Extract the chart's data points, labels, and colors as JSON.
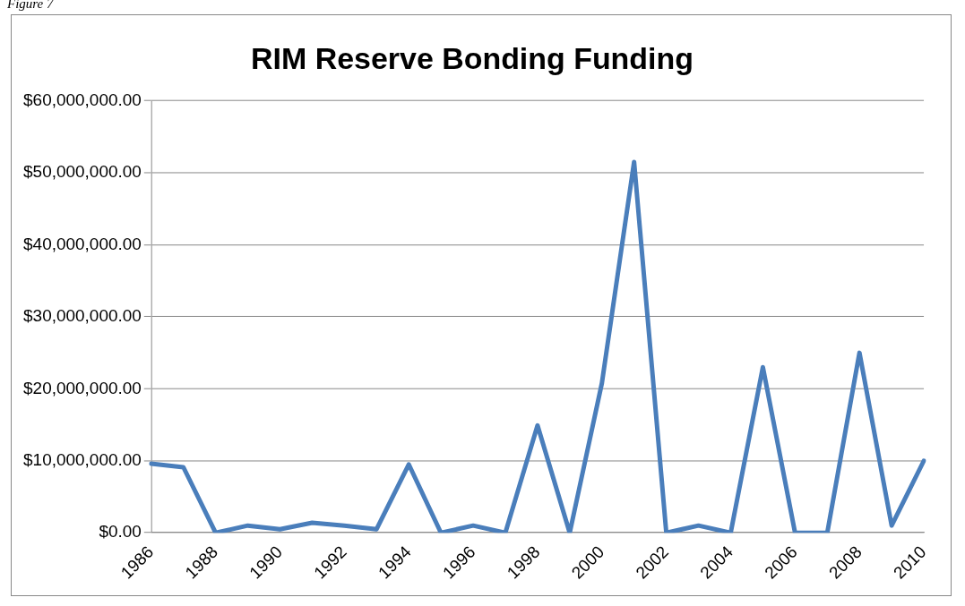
{
  "chart_data": {
    "type": "line",
    "title": "RIM Reserve Bonding Funding",
    "annotations": [
      "Figure 7"
    ],
    "categories": [
      "1986",
      null,
      "1988",
      null,
      "1990",
      null,
      "1992",
      null,
      "1994",
      null,
      "1996",
      null,
      "1998",
      null,
      "2000",
      null,
      "2002",
      null,
      "2004",
      null,
      "2006",
      null,
      "2008",
      null,
      "2010"
    ],
    "series": [
      {
        "color": "#4a7ebb",
        "values": [
          9600000,
          9100000,
          0,
          1000000,
          500000,
          1400000,
          1000000,
          500000,
          9500000,
          0,
          1000000,
          0,
          14900000,
          0,
          20800000,
          51500000,
          0,
          1000000,
          0,
          23000000,
          0,
          0,
          25000000,
          1000000,
          10000000
        ]
      }
    ],
    "ylim": [
      0,
      60000000
    ],
    "yticks": [
      {
        "value": 0,
        "label": "$0.00"
      },
      {
        "value": 10000000,
        "label": "$10,000,000.00"
      },
      {
        "value": 20000000,
        "label": "$20,000,000.00"
      },
      {
        "value": 30000000,
        "label": "$30,000,000.00"
      },
      {
        "value": 40000000,
        "label": "$40,000,000.00"
      },
      {
        "value": 50000000,
        "label": "$50,000,000.00"
      },
      {
        "value": 60000000,
        "label": "$60,000,000.00"
      }
    ],
    "grid": "y",
    "legend": false,
    "marker": "none",
    "line_style": "solid"
  }
}
